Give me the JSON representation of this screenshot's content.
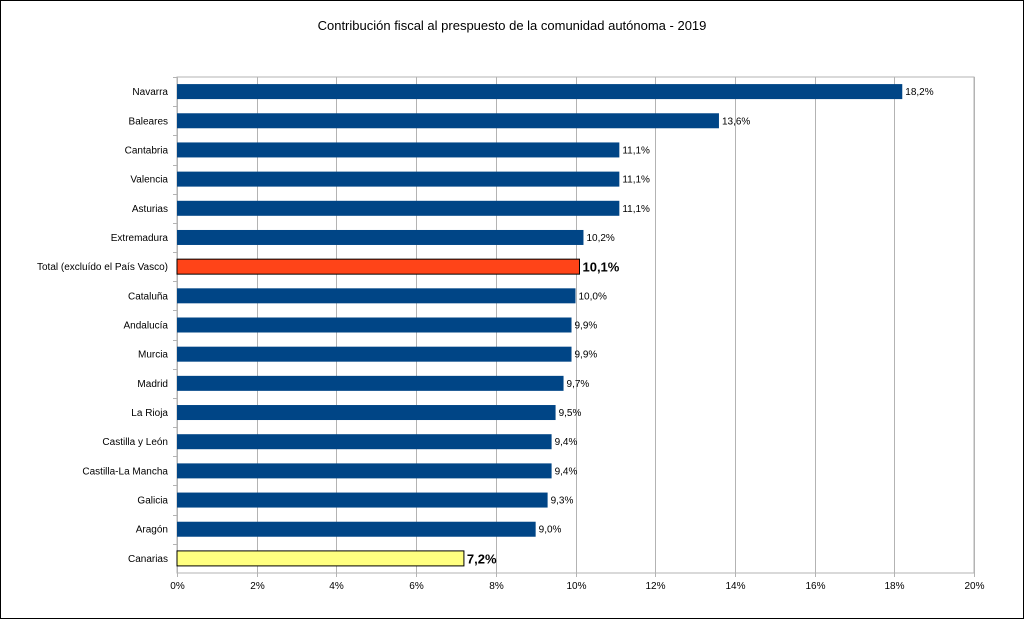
{
  "chart_data": {
    "type": "bar",
    "orientation": "horizontal",
    "title": "Contribución fiscal al prespuesto de la comunidad autónoma - 2019",
    "xlabel": "",
    "ylabel": "",
    "xlim": [
      0,
      20
    ],
    "grid": true,
    "legend": "none",
    "ticks": [
      "0%",
      "2%",
      "4%",
      "6%",
      "8%",
      "10%",
      "12%",
      "14%",
      "16%",
      "18%",
      "20%"
    ],
    "categories": [
      "Navarra",
      "Baleares",
      "Cantabria",
      "Valencia",
      "Asturias",
      "Extremadura",
      "Total (excluído el País Vasco)",
      "Cataluña",
      "Andalucía",
      "Murcia",
      "Madrid",
      "La Rioja",
      "Castilla y León",
      "Castilla-La Mancha",
      "Galicia",
      "Aragón",
      "Canarias"
    ],
    "values": [
      18.2,
      13.6,
      11.1,
      11.1,
      11.1,
      10.2,
      10.1,
      10.0,
      9.9,
      9.9,
      9.7,
      9.5,
      9.4,
      9.4,
      9.3,
      9.0,
      7.2
    ],
    "labels": [
      "18,2%",
      "13,6%",
      "11,1%",
      "11,1%",
      "11,1%",
      "10,2%",
      "10,1%",
      "10,0%",
      "9,9%",
      "9,9%",
      "9,7%",
      "9,5%",
      "9,4%",
      "9,4%",
      "9,3%",
      "9,0%",
      "7,2%"
    ],
    "highlight": {
      "Total (excluído el País Vasco)": "#FF4418",
      "Canarias": "#FFFF80"
    },
    "colors": {
      "bar": "#004586",
      "grid": "#B3B3B3",
      "axis": "#B3B3B3"
    }
  }
}
